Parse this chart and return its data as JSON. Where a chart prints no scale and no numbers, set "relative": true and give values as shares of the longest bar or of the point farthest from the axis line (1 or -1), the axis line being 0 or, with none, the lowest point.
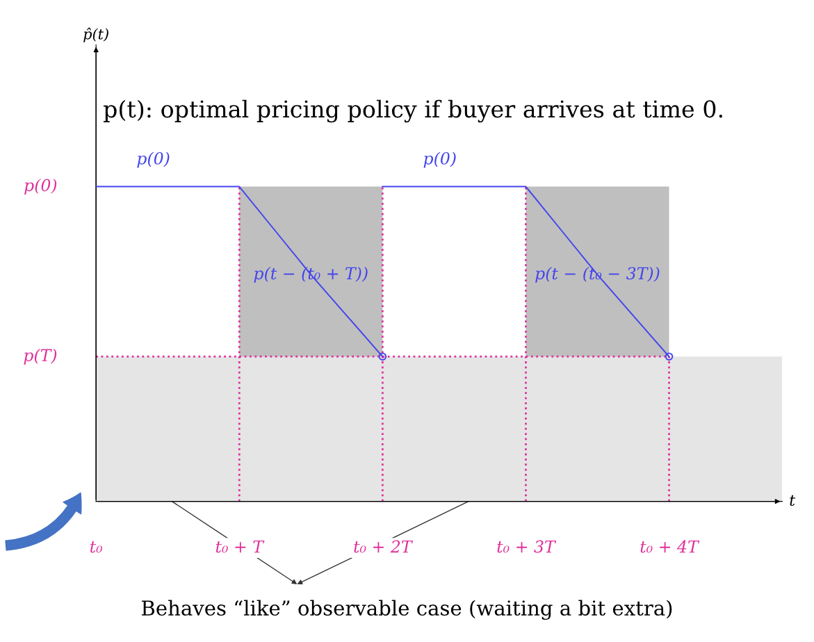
{
  "chart_data": {
    "type": "line",
    "title": "p(t): optimal pricing policy if buyer arrives at time 0.",
    "xlabel": "t",
    "xlim": [
      0,
      4.79
    ],
    "relative": true,
    "xticks": [
      {
        "value": 0,
        "label": "t₀"
      },
      {
        "value": 1,
        "label": "t₀ + T"
      },
      {
        "value": 2,
        "label": "t₀ + 2T"
      },
      {
        "value": 3,
        "label": "t₀ + 3T"
      },
      {
        "value": 4,
        "label": "t₀ + 4T"
      }
    ],
    "grid": false,
    "bands": [
      {
        "axis": "y",
        "from": 0,
        "to": 0.46,
        "color": "#e5e5e5"
      }
    ],
    "series": [
      {
        "type": "area",
        "color": "#bfbfbf",
        "x": [
          1,
          2
        ],
        "values": [
          1,
          1
        ]
      },
      {
        "type": "area",
        "color": "#bfbfbf",
        "x": [
          3,
          4
        ],
        "values": [
          1,
          1
        ]
      },
      {
        "type": "line",
        "color": "#e0309a",
        "line_style": "dotted",
        "x": [
          1,
          1
        ],
        "values": [
          0,
          1
        ]
      },
      {
        "type": "line",
        "color": "#e0309a",
        "line_style": "dotted",
        "x": [
          2,
          2
        ],
        "values": [
          0,
          1
        ]
      },
      {
        "type": "line",
        "color": "#e0309a",
        "line_style": "dotted",
        "x": [
          3,
          3
        ],
        "values": [
          0,
          1
        ]
      },
      {
        "type": "line",
        "color": "#e0309a",
        "line_style": "dotted",
        "x": [
          4,
          4
        ],
        "values": [
          0,
          0.46
        ]
      },
      {
        "type": "line",
        "color": "#e0309a",
        "line_style": "dotted",
        "x": [
          0,
          4
        ],
        "values": [
          0.46,
          0.46
        ]
      },
      {
        "color": "#4444ee",
        "x": [
          0,
          1,
          1.25,
          1.5,
          1.75,
          2
        ],
        "values": [
          1,
          1,
          0.86,
          0.72,
          0.59,
          0.46
        ]
      },
      {
        "color": "#4444ee",
        "x": [
          2,
          3,
          3.25,
          3.5,
          3.75,
          4
        ],
        "values": [
          1,
          1,
          0.86,
          0.72,
          0.59,
          0.46
        ]
      },
      {
        "type": "scatter",
        "color": "#4444ee",
        "marker": "circle",
        "x": [
          2,
          4
        ],
        "values": [
          0.46,
          0.46
        ]
      }
    ],
    "annotations": [
      {
        "text": "p(0)",
        "x": 0,
        "y": 1
      },
      {
        "text": "p(T)",
        "x": 0,
        "y": 0.46
      },
      {
        "text": "p(0)",
        "x": 0.4,
        "y": 1.0
      },
      {
        "text": "p(0)",
        "x": 2.4,
        "y": 1.0
      },
      {
        "text": "p(t − (t₀ + T))",
        "x": 1.5,
        "y": 0.72
      },
      {
        "text": "p(t − (t₀ − 3T))",
        "x": 3.5,
        "y": 0.72
      },
      "p̂(t)",
      "Behaves “like” observable case (waiting a bit extra)"
    ]
  }
}
